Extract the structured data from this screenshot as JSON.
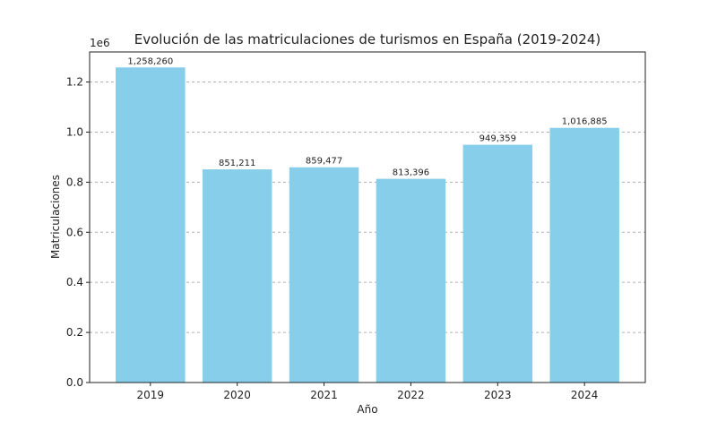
{
  "chart_data": {
    "type": "bar",
    "title": "Evolución de las matriculaciones de turismos en España (2019-2024)",
    "xlabel": "Año",
    "ylabel": "Matriculaciones",
    "y_offset_label": "1e6",
    "categories": [
      "2019",
      "2020",
      "2021",
      "2022",
      "2023",
      "2024"
    ],
    "values": [
      1258260,
      851211,
      859477,
      813396,
      949359,
      1016885
    ],
    "data_labels": [
      "1,258,260",
      "851,211",
      "859,477",
      "813,396",
      "949,359",
      "1,016,885"
    ],
    "ylim": [
      0,
      1320000
    ],
    "yticks": [
      0,
      200000,
      400000,
      600000,
      800000,
      1000000,
      1200000
    ],
    "ytick_labels": [
      "0.0",
      "0.2",
      "0.4",
      "0.6",
      "0.8",
      "1.0",
      "1.2"
    ],
    "grid": "y-dashed",
    "bar_color": "#87ceeb",
    "legend": "none"
  }
}
